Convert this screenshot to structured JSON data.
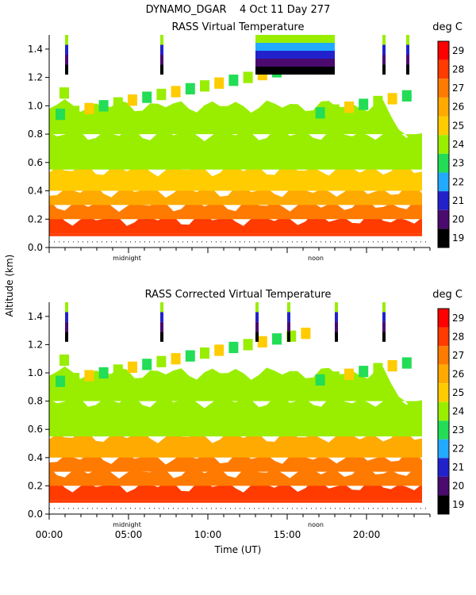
{
  "header": {
    "title": "DYNAMO_DGAR    4 Oct 11 Day 277"
  },
  "chart_data": [
    {
      "type": "heatmap",
      "title": "RASS Virtual Temperature",
      "unit_label": "deg C",
      "ylabel": "Altitude (km)",
      "ylim": [
        0.0,
        1.5
      ],
      "xlim": [
        0,
        24
      ],
      "yticks": [
        "0.0",
        "0.2",
        "0.4",
        "0.6",
        "0.8",
        "1.0",
        "1.2",
        "1.4"
      ],
      "x_markers": [
        "midnight",
        "noon"
      ],
      "colorbar_ticks": [
        "29",
        "28",
        "27",
        "26",
        "25",
        "24",
        "23",
        "22",
        "21",
        "20",
        "19"
      ],
      "bands": [
        {
          "alt_km": [
            0.1,
            0.2
          ],
          "temp_c": 27.8
        },
        {
          "alt_km": [
            0.2,
            0.3
          ],
          "temp_c": 27.2
        },
        {
          "alt_km": [
            0.3,
            0.4
          ],
          "temp_c": 26.4
        },
        {
          "alt_km": [
            0.4,
            0.55
          ],
          "temp_c": 25.4
        },
        {
          "alt_km": [
            0.55,
            0.8
          ],
          "temp_c": 24.2
        },
        {
          "alt_km": [
            0.8,
            1.0
          ],
          "temp_c": 23.6
        }
      ],
      "cold_tops_hours": [
        1.0,
        7.0,
        13.5,
        16.5,
        21.0,
        22.5
      ],
      "cold_block_hours": [
        13.0,
        18.0
      ]
    },
    {
      "type": "heatmap",
      "title": "RASS Corrected Virtual Temperature",
      "unit_label": "deg C",
      "ylabel": "Altitude (km)",
      "xlabel": "Time (UT)",
      "ylim": [
        0.0,
        1.5
      ],
      "xlim": [
        0,
        24
      ],
      "yticks": [
        "0.0",
        "0.2",
        "0.4",
        "0.6",
        "0.8",
        "1.0",
        "1.2",
        "1.4"
      ],
      "xticks": [
        "00:00",
        "05:00",
        "10:00",
        "15:00",
        "20:00"
      ],
      "x_markers": [
        "midnight",
        "noon"
      ],
      "colorbar_ticks": [
        "29",
        "28",
        "27",
        "26",
        "25",
        "24",
        "23",
        "22",
        "21",
        "20",
        "19"
      ],
      "bands": [
        {
          "alt_km": [
            0.1,
            0.2
          ],
          "temp_c": 28.0
        },
        {
          "alt_km": [
            0.2,
            0.3
          ],
          "temp_c": 27.2
        },
        {
          "alt_km": [
            0.3,
            0.4
          ],
          "temp_c": 26.6
        },
        {
          "alt_km": [
            0.4,
            0.55
          ],
          "temp_c": 25.6
        },
        {
          "alt_km": [
            0.55,
            0.8
          ],
          "temp_c": 24.4
        },
        {
          "alt_km": [
            0.8,
            1.0
          ],
          "temp_c": 23.8
        }
      ],
      "cold_tops_hours": [
        1.0,
        7.0,
        13.0,
        15.0,
        18.0,
        21.0
      ],
      "cold_block_hours": []
    }
  ],
  "colorscale": {
    "levels": [
      "29",
      "28",
      "27",
      "26",
      "25",
      "24",
      "23",
      "22",
      "21",
      "20",
      "19"
    ],
    "colors": [
      "#ff0000",
      "#ff3b00",
      "#ff7a00",
      "#ffaa00",
      "#ffcc00",
      "#99ee00",
      "#22dd55",
      "#22aaff",
      "#2222cc",
      "#4a0a6e",
      "#000000"
    ]
  }
}
